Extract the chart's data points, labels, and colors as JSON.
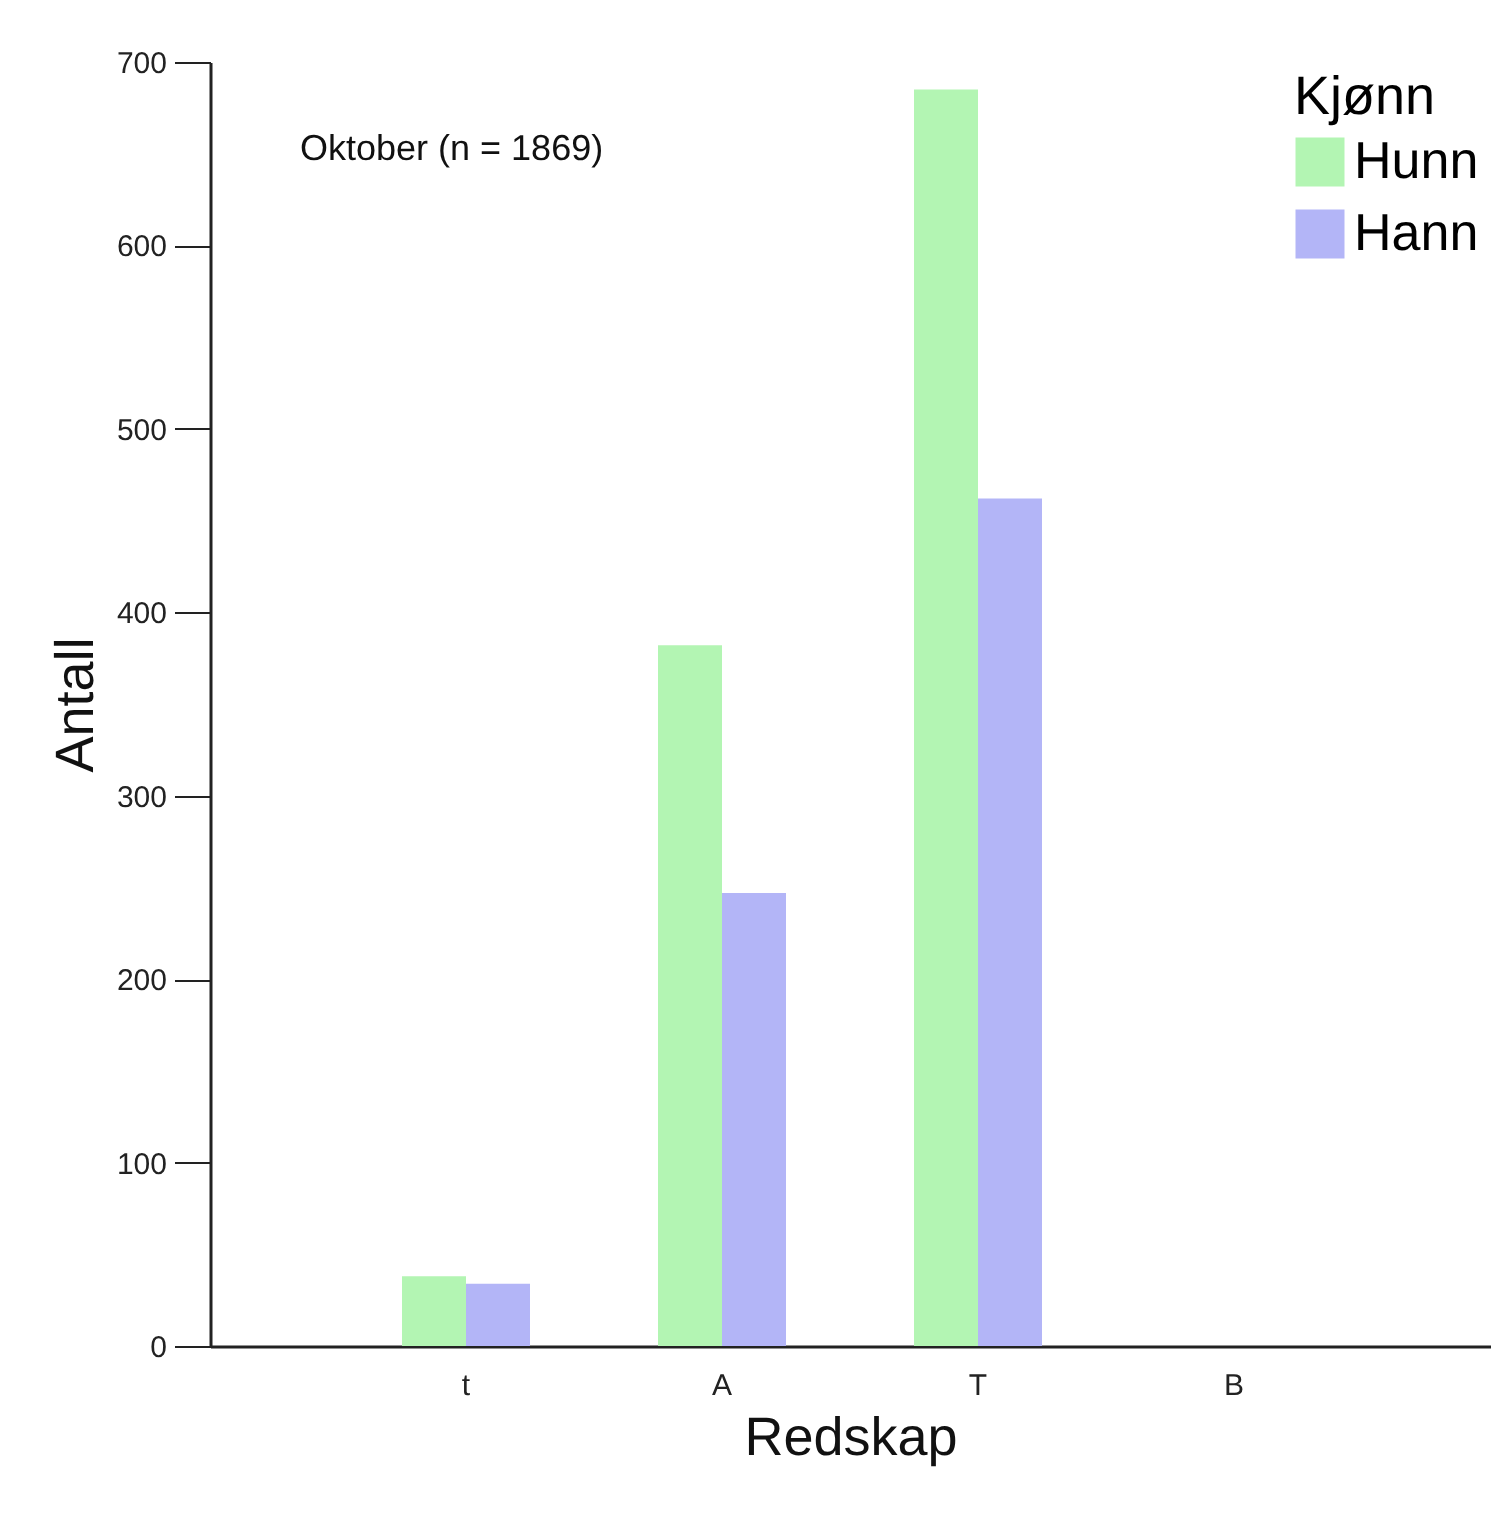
{
  "chart_data": {
    "type": "bar",
    "xlabel": "Redskap",
    "ylabel": "Antall",
    "legend_title": "Kjønn",
    "annotations": [
      "Oktober (n = 1869)"
    ],
    "categories": [
      "t",
      "A",
      "T",
      "B"
    ],
    "series": [
      {
        "name": "Hunn",
        "color": "#b3f5b3",
        "values": [
          38,
          382,
          685,
          null
        ]
      },
      {
        "name": "Hann",
        "color": "#b3b5f7",
        "values": [
          34,
          247,
          462,
          null
        ]
      }
    ],
    "ylim": [
      0,
      700
    ],
    "yticks": [
      0,
      100,
      200,
      300,
      400,
      500,
      600,
      700
    ],
    "grid": false,
    "legend": "top right"
  }
}
